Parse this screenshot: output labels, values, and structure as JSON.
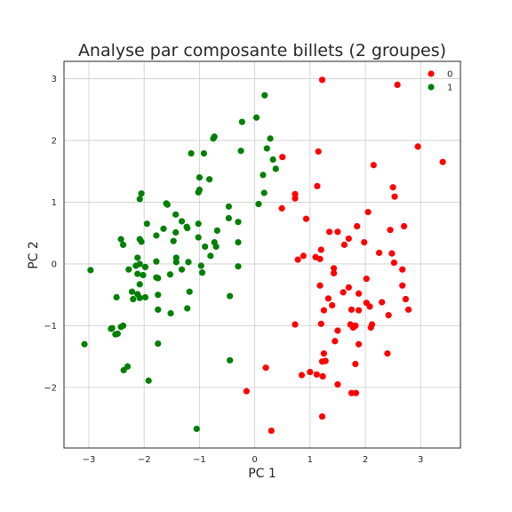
{
  "chart_data": {
    "type": "scatter",
    "title": "Analyse par composante billets (2 groupes)",
    "xlabel": "PC 1",
    "ylabel": "PC 2",
    "xlim": [
      -3.45,
      3.72
    ],
    "ylim": [
      -2.98,
      3.28
    ],
    "xticks": [
      -3,
      -2,
      -1,
      0,
      1,
      2,
      3
    ],
    "yticks": [
      -2,
      -1,
      0,
      1,
      2,
      3
    ],
    "xtick_labels": [
      "−3",
      "−2",
      "−1",
      "0",
      "1",
      "2",
      "3"
    ],
    "ytick_labels": [
      "−2",
      "−1",
      "0",
      "1",
      "2",
      "3"
    ],
    "grid": true,
    "legend_position": "top-right",
    "series": [
      {
        "name": "0",
        "color": "#ff0000",
        "points": [
          [
            1.22,
            2.98
          ],
          [
            2.58,
            2.9
          ],
          [
            2.95,
            1.9
          ],
          [
            3.4,
            1.65
          ],
          [
            1.15,
            1.82
          ],
          [
            0.5,
            1.73
          ],
          [
            2.15,
            1.6
          ],
          [
            1.13,
            1.26
          ],
          [
            2.5,
            1.24
          ],
          [
            2.53,
            1.09
          ],
          [
            0.73,
            1.13
          ],
          [
            0.73,
            1.06
          ],
          [
            0.49,
            0.9
          ],
          [
            2.05,
            0.84
          ],
          [
            0.93,
            0.73
          ],
          [
            1.85,
            0.61
          ],
          [
            2.7,
            0.61
          ],
          [
            1.35,
            0.52
          ],
          [
            1.5,
            0.52
          ],
          [
            2.45,
            0.55
          ],
          [
            1.7,
            0.41
          ],
          [
            1.98,
            0.35
          ],
          [
            1.62,
            0.31
          ],
          [
            1.2,
            0.23
          ],
          [
            2.25,
            0.18
          ],
          [
            2.48,
            0.17
          ],
          [
            0.88,
            0.13
          ],
          [
            1.1,
            0.11
          ],
          [
            0.78,
            0.07
          ],
          [
            1.18,
            0.08
          ],
          [
            2.52,
            0.02
          ],
          [
            1.43,
            -0.07
          ],
          [
            2.67,
            -0.09
          ],
          [
            1.43,
            -0.15
          ],
          [
            2.02,
            -0.24
          ],
          [
            1.18,
            -0.35
          ],
          [
            2.67,
            -0.35
          ],
          [
            1.7,
            -0.38
          ],
          [
            1.6,
            -0.46
          ],
          [
            1.88,
            -0.48
          ],
          [
            1.33,
            -0.56
          ],
          [
            2.73,
            -0.57
          ],
          [
            2.3,
            -0.62
          ],
          [
            2.02,
            -0.63
          ],
          [
            1.4,
            -0.67
          ],
          [
            1.25,
            -0.75
          ],
          [
            1.75,
            -0.74
          ],
          [
            1.88,
            -0.75
          ],
          [
            2.08,
            -0.69
          ],
          [
            2.78,
            -0.74
          ],
          [
            2.42,
            -0.83
          ],
          [
            1.2,
            -0.97
          ],
          [
            0.73,
            -0.98
          ],
          [
            1.73,
            -0.98
          ],
          [
            1.82,
            -1.0
          ],
          [
            1.78,
            -1.03
          ],
          [
            2.1,
            -1.03
          ],
          [
            2.12,
            -0.98
          ],
          [
            1.5,
            -1.08
          ],
          [
            1.45,
            -1.25
          ],
          [
            1.88,
            -1.3
          ],
          [
            2.4,
            -1.45
          ],
          [
            1.25,
            -1.45
          ],
          [
            1.22,
            -1.58
          ],
          [
            1.28,
            -1.57
          ],
          [
            1.82,
            -1.62
          ],
          [
            1.0,
            -1.75
          ],
          [
            1.12,
            -1.79
          ],
          [
            0.85,
            -1.8
          ],
          [
            1.23,
            -1.82
          ],
          [
            1.5,
            -1.95
          ],
          [
            0.2,
            -1.68
          ],
          [
            -0.15,
            -2.06
          ],
          [
            1.75,
            -2.09
          ],
          [
            1.83,
            -2.09
          ],
          [
            1.22,
            -2.47
          ],
          [
            0.3,
            -2.7
          ]
        ]
      },
      {
        "name": "1",
        "color": "#008000",
        "points": [
          [
            0.18,
            2.73
          ],
          [
            0.03,
            2.37
          ],
          [
            -0.23,
            2.3
          ],
          [
            0.28,
            2.03
          ],
          [
            -0.73,
            2.06
          ],
          [
            -0.75,
            2.03
          ],
          [
            0.22,
            1.87
          ],
          [
            -0.25,
            1.83
          ],
          [
            -1.15,
            1.79
          ],
          [
            -0.92,
            1.79
          ],
          [
            0.33,
            1.69
          ],
          [
            0.38,
            1.54
          ],
          [
            0.15,
            1.44
          ],
          [
            -1.0,
            1.4
          ],
          [
            -0.82,
            1.37
          ],
          [
            -1.0,
            1.2
          ],
          [
            -1.02,
            1.16
          ],
          [
            0.17,
            1.15
          ],
          [
            -2.05,
            1.14
          ],
          [
            -2.08,
            1.05
          ],
          [
            -1.6,
            0.98
          ],
          [
            -1.58,
            0.96
          ],
          [
            0.07,
            0.97
          ],
          [
            -0.47,
            0.93
          ],
          [
            -1.43,
            0.8
          ],
          [
            -1.32,
            0.69
          ],
          [
            -0.47,
            0.74
          ],
          [
            -0.3,
            0.68
          ],
          [
            -1.95,
            0.65
          ],
          [
            -1.02,
            0.65
          ],
          [
            -1.23,
            0.6
          ],
          [
            -1.22,
            0.58
          ],
          [
            -1.65,
            0.57
          ],
          [
            -0.68,
            0.54
          ],
          [
            -1.43,
            0.51
          ],
          [
            -1.78,
            0.46
          ],
          [
            -1.02,
            0.43
          ],
          [
            -2.42,
            0.4
          ],
          [
            -2.08,
            0.4
          ],
          [
            -2.05,
            0.36
          ],
          [
            -1.47,
            0.37
          ],
          [
            -0.3,
            0.35
          ],
          [
            -0.73,
            0.35
          ],
          [
            -2.38,
            0.31
          ],
          [
            -0.9,
            0.28
          ],
          [
            -0.7,
            0.28
          ],
          [
            -0.8,
            0.13
          ],
          [
            -2.12,
            0.1
          ],
          [
            -1.42,
            0.1
          ],
          [
            -1.78,
            0.04
          ],
          [
            -1.42,
            0.03
          ],
          [
            -1.2,
            0.03
          ],
          [
            -2.08,
            0.0
          ],
          [
            -2.15,
            -0.03
          ],
          [
            -1.98,
            -0.05
          ],
          [
            -0.97,
            -0.03
          ],
          [
            -0.3,
            -0.04
          ],
          [
            -2.97,
            -0.1
          ],
          [
            -2.28,
            -0.09
          ],
          [
            -1.32,
            -0.09
          ],
          [
            -0.95,
            -0.14
          ],
          [
            -2.02,
            -0.18
          ],
          [
            -2.12,
            -0.16
          ],
          [
            -1.53,
            -0.17
          ],
          [
            -1.78,
            -0.22
          ],
          [
            -1.75,
            -0.23
          ],
          [
            -2.08,
            -0.33
          ],
          [
            -2.22,
            -0.45
          ],
          [
            -1.18,
            -0.45
          ],
          [
            -2.12,
            -0.49
          ],
          [
            -1.75,
            -0.5
          ],
          [
            -2.08,
            -0.55
          ],
          [
            -2.5,
            -0.54
          ],
          [
            -2.2,
            -0.57
          ],
          [
            -1.98,
            -0.54
          ],
          [
            -0.45,
            -0.52
          ],
          [
            -1.22,
            -0.72
          ],
          [
            -1.75,
            -0.74
          ],
          [
            -1.52,
            -0.8
          ],
          [
            -2.38,
            -1.0
          ],
          [
            -2.42,
            -1.02
          ],
          [
            -2.58,
            -1.04
          ],
          [
            -2.6,
            -1.05
          ],
          [
            -2.52,
            -1.14
          ],
          [
            -2.48,
            -1.13
          ],
          [
            -3.08,
            -1.3
          ],
          [
            -1.75,
            -1.29
          ],
          [
            -0.45,
            -1.56
          ],
          [
            -2.3,
            -1.66
          ],
          [
            -2.37,
            -1.72
          ],
          [
            -1.92,
            -1.89
          ],
          [
            -1.05,
            -2.67
          ]
        ]
      }
    ]
  }
}
